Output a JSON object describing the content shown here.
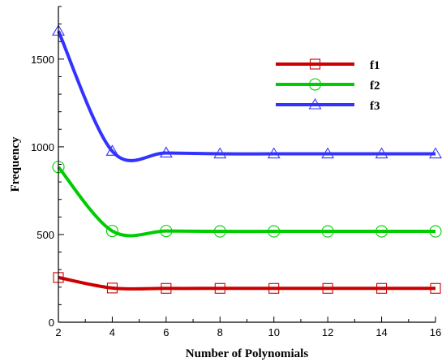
{
  "chart_data": {
    "type": "line",
    "xlabel": "Number of Polynomials",
    "ylabel": "Frequency",
    "xlim": [
      2,
      16
    ],
    "ylim": [
      0,
      1800
    ],
    "x_ticks": [
      2,
      4,
      6,
      8,
      10,
      12,
      14,
      16
    ],
    "y_ticks": [
      0,
      500,
      1000,
      1500
    ],
    "grid": false,
    "legend_position": "top-right",
    "x": [
      2,
      4,
      6,
      8,
      10,
      12,
      14,
      16
    ],
    "series": [
      {
        "name": "f1",
        "values": [
          255,
          195,
          193,
          193,
          193,
          193,
          193,
          193
        ],
        "color": "#cc0000",
        "marker": "square"
      },
      {
        "name": "f2",
        "values": [
          885,
          520,
          520,
          518,
          518,
          518,
          518,
          518
        ],
        "color": "#00cc00",
        "marker": "circle"
      },
      {
        "name": "f3",
        "values": [
          1660,
          975,
          965,
          960,
          960,
          960,
          960,
          960
        ],
        "color": "#3333ff",
        "marker": "triangle"
      }
    ]
  }
}
